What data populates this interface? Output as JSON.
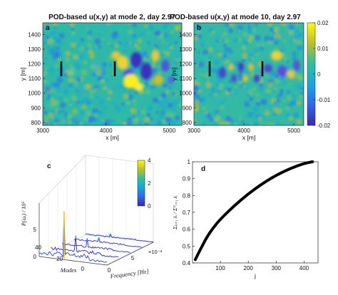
{
  "chart_data": [
    {
      "type": "heatmap",
      "panel_letter": "a",
      "title": "POD-based u(x,y) at mode 2, day 2.97",
      "xlabel": "x [m]",
      "ylabel": "y [m]",
      "xlim": [
        3000,
        5200
      ],
      "ylim": [
        780,
        1480
      ],
      "x_ticks": [
        "3000",
        "4000",
        "5000"
      ],
      "y_ticks": [
        "800",
        "900",
        "1000",
        "1100",
        "1200",
        "1300",
        "1400"
      ],
      "turbines": [
        {
          "x": 3350,
          "y": 1130
        },
        {
          "x": 4330,
          "y": 1130
        }
      ],
      "colorbar": {
        "shared_with": "b"
      }
    },
    {
      "type": "heatmap",
      "panel_letter": "b",
      "title": "POD-based u(x,y) at mode 10, day 2.97",
      "xlabel": "x [m]",
      "ylabel": "y [m]",
      "xlim": [
        3000,
        5200
      ],
      "ylim": [
        780,
        1480
      ],
      "x_ticks": [
        "3000",
        "4000",
        "5000"
      ],
      "y_ticks": [
        "800",
        "900",
        "1000",
        "1100",
        "1200",
        "1300",
        "1400"
      ],
      "turbines": [
        {
          "x": 3350,
          "y": 1130
        },
        {
          "x": 4330,
          "y": 1130
        }
      ],
      "colorbar": {
        "range": [
          -0.02,
          0.02
        ],
        "ticks": [
          "0.02",
          "0.01",
          "0",
          "-0.01",
          "-0.02"
        ]
      }
    },
    {
      "type": "waterfall",
      "panel_letter": "c",
      "xlabel": "Frequency [Hz]",
      "x_multiplier": "×10⁻³",
      "ylabel": "Modes",
      "zlabel": "P(ωᵢ) / 10⁵",
      "x_ticks": [
        "0",
        "5"
      ],
      "y_ticks": [
        "0",
        "20",
        "40"
      ],
      "z_ticks": [
        "0",
        "5"
      ],
      "colorbar": {
        "range": [
          0,
          4
        ],
        "ticks": [
          "4",
          "2",
          "0"
        ]
      },
      "slices": [
        {
          "mode": 0,
          "peak": 4.2,
          "noise": 0.9
        },
        {
          "mode": 10,
          "peak": 1.6,
          "noise": 0.6
        },
        {
          "mode": 20,
          "peak": 0.9,
          "noise": 0.35
        },
        {
          "mode": 30,
          "peak": 0.5,
          "noise": 0.25
        },
        {
          "mode": 40,
          "peak": 0.35,
          "noise": 0.18
        }
      ]
    },
    {
      "type": "line",
      "panel_letter": "d",
      "xlabel": "j",
      "ylabel": "Σⱼᵢ₌₁ λᵢ / Σᴺᵢ₌₁ λᵢ",
      "xlim": [
        0,
        450
      ],
      "ylim": [
        0.4,
        1.0
      ],
      "x_ticks": [
        "100",
        "200",
        "300",
        "400"
      ],
      "y_ticks": [
        "0.4",
        "0.5",
        "0.6",
        "0.7",
        "0.8",
        "0.9",
        "1"
      ],
      "series": [
        {
          "x": [
            10,
            25,
            50,
            75,
            100,
            150,
            200,
            250,
            300,
            350,
            400,
            430
          ],
          "values": [
            0.42,
            0.47,
            0.55,
            0.61,
            0.66,
            0.74,
            0.81,
            0.87,
            0.92,
            0.96,
            0.99,
            1.0
          ]
        }
      ]
    }
  ]
}
